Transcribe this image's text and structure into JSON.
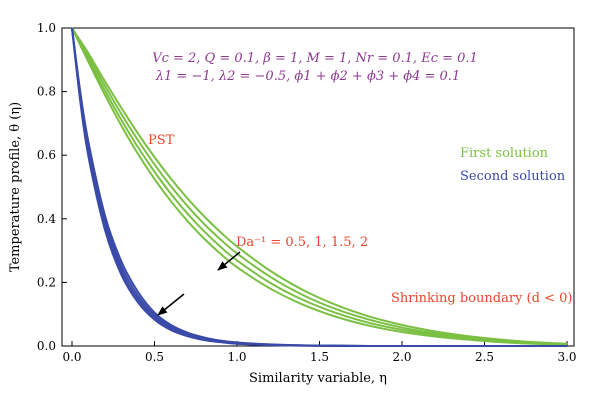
{
  "chart_data": {
    "type": "line",
    "title": "",
    "xlabel": "Similarity variable, η",
    "ylabel": "Temperature profile, θ (η)",
    "xlim": [
      0.0,
      3.0
    ],
    "ylim": [
      0.0,
      1.0
    ],
    "xticks": [
      "0.0",
      "0.5",
      "1.0",
      "1.5",
      "2.0",
      "2.5",
      "3.0"
    ],
    "yticks": [
      "0.0",
      "0.2",
      "0.4",
      "0.6",
      "0.8",
      "1.0"
    ],
    "grid": false,
    "colors": {
      "first": "#7bc043",
      "second": "#3a4aa8",
      "label_red": "#e8452c",
      "label_purple": "#8b3a8f"
    },
    "x": [
      0.0,
      0.05,
      0.1,
      0.2,
      0.3,
      0.4,
      0.5,
      0.6,
      0.7,
      0.8,
      0.9,
      1.0,
      1.2,
      1.4,
      1.6,
      1.8,
      2.0,
      2.2,
      2.4,
      2.6,
      2.8,
      3.0
    ],
    "series": [
      {
        "group": "first",
        "values": [
          1.0,
          0.96,
          0.92,
          0.832,
          0.748,
          0.668,
          0.594,
          0.526,
          0.464,
          0.408,
          0.358,
          0.313,
          0.237,
          0.176,
          0.129,
          0.093,
          0.066,
          0.046,
          0.031,
          0.02,
          0.012,
          0.007
        ]
      },
      {
        "group": "first",
        "values": [
          1.0,
          0.955,
          0.911,
          0.818,
          0.729,
          0.647,
          0.571,
          0.502,
          0.44,
          0.384,
          0.335,
          0.291,
          0.218,
          0.16,
          0.116,
          0.083,
          0.058,
          0.04,
          0.027,
          0.017,
          0.01,
          0.006
        ]
      },
      {
        "group": "first",
        "values": [
          1.0,
          0.951,
          0.902,
          0.803,
          0.71,
          0.625,
          0.548,
          0.478,
          0.416,
          0.361,
          0.312,
          0.269,
          0.199,
          0.145,
          0.104,
          0.073,
          0.051,
          0.035,
          0.023,
          0.014,
          0.009,
          0.005
        ]
      },
      {
        "group": "first",
        "values": [
          1.0,
          0.946,
          0.893,
          0.789,
          0.692,
          0.604,
          0.525,
          0.455,
          0.393,
          0.338,
          0.29,
          0.248,
          0.181,
          0.13,
          0.092,
          0.064,
          0.044,
          0.03,
          0.02,
          0.012,
          0.007,
          0.004
        ]
      },
      {
        "group": "second",
        "values": [
          1.0,
          0.8,
          0.64,
          0.41,
          0.265,
          0.17,
          0.105,
          0.066,
          0.042,
          0.027,
          0.017,
          0.011,
          0.005,
          0.002,
          0.001,
          0.0,
          0.0,
          0.0,
          0.0,
          0.0,
          0.0,
          0.0
        ]
      },
      {
        "group": "second",
        "values": [
          1.0,
          0.79,
          0.625,
          0.395,
          0.25,
          0.158,
          0.097,
          0.06,
          0.038,
          0.024,
          0.015,
          0.009,
          0.004,
          0.002,
          0.001,
          0.0,
          0.0,
          0.0,
          0.0,
          0.0,
          0.0,
          0.0
        ]
      },
      {
        "group": "second",
        "values": [
          1.0,
          0.78,
          0.61,
          0.38,
          0.236,
          0.147,
          0.09,
          0.055,
          0.034,
          0.021,
          0.013,
          0.008,
          0.003,
          0.001,
          0.0,
          0.0,
          0.0,
          0.0,
          0.0,
          0.0,
          0.0,
          0.0
        ]
      },
      {
        "group": "second",
        "values": [
          1.0,
          0.77,
          0.595,
          0.365,
          0.223,
          0.137,
          0.083,
          0.05,
          0.031,
          0.019,
          0.012,
          0.007,
          0.003,
          0.001,
          0.0,
          0.0,
          0.0,
          0.0,
          0.0,
          0.0,
          0.0,
          0.0
        ]
      }
    ],
    "annotations": {
      "params_line1": "Vc = 2, Q = 0.1, β = 1, M = 1, Nr = 0.1, Ec = 0.1",
      "params_line2": "λ1 = −1, λ2 = −0.5, ϕ1 + ϕ2 + ϕ3 + ϕ4 = 0.1",
      "pst": "PST",
      "first_solution": "First solution",
      "second_solution": "Second solution",
      "da_label": "Da⁻¹ = 0.5, 1, 1.5, 2",
      "shrinking": "Shrinking boundary (d < 0)"
    }
  }
}
